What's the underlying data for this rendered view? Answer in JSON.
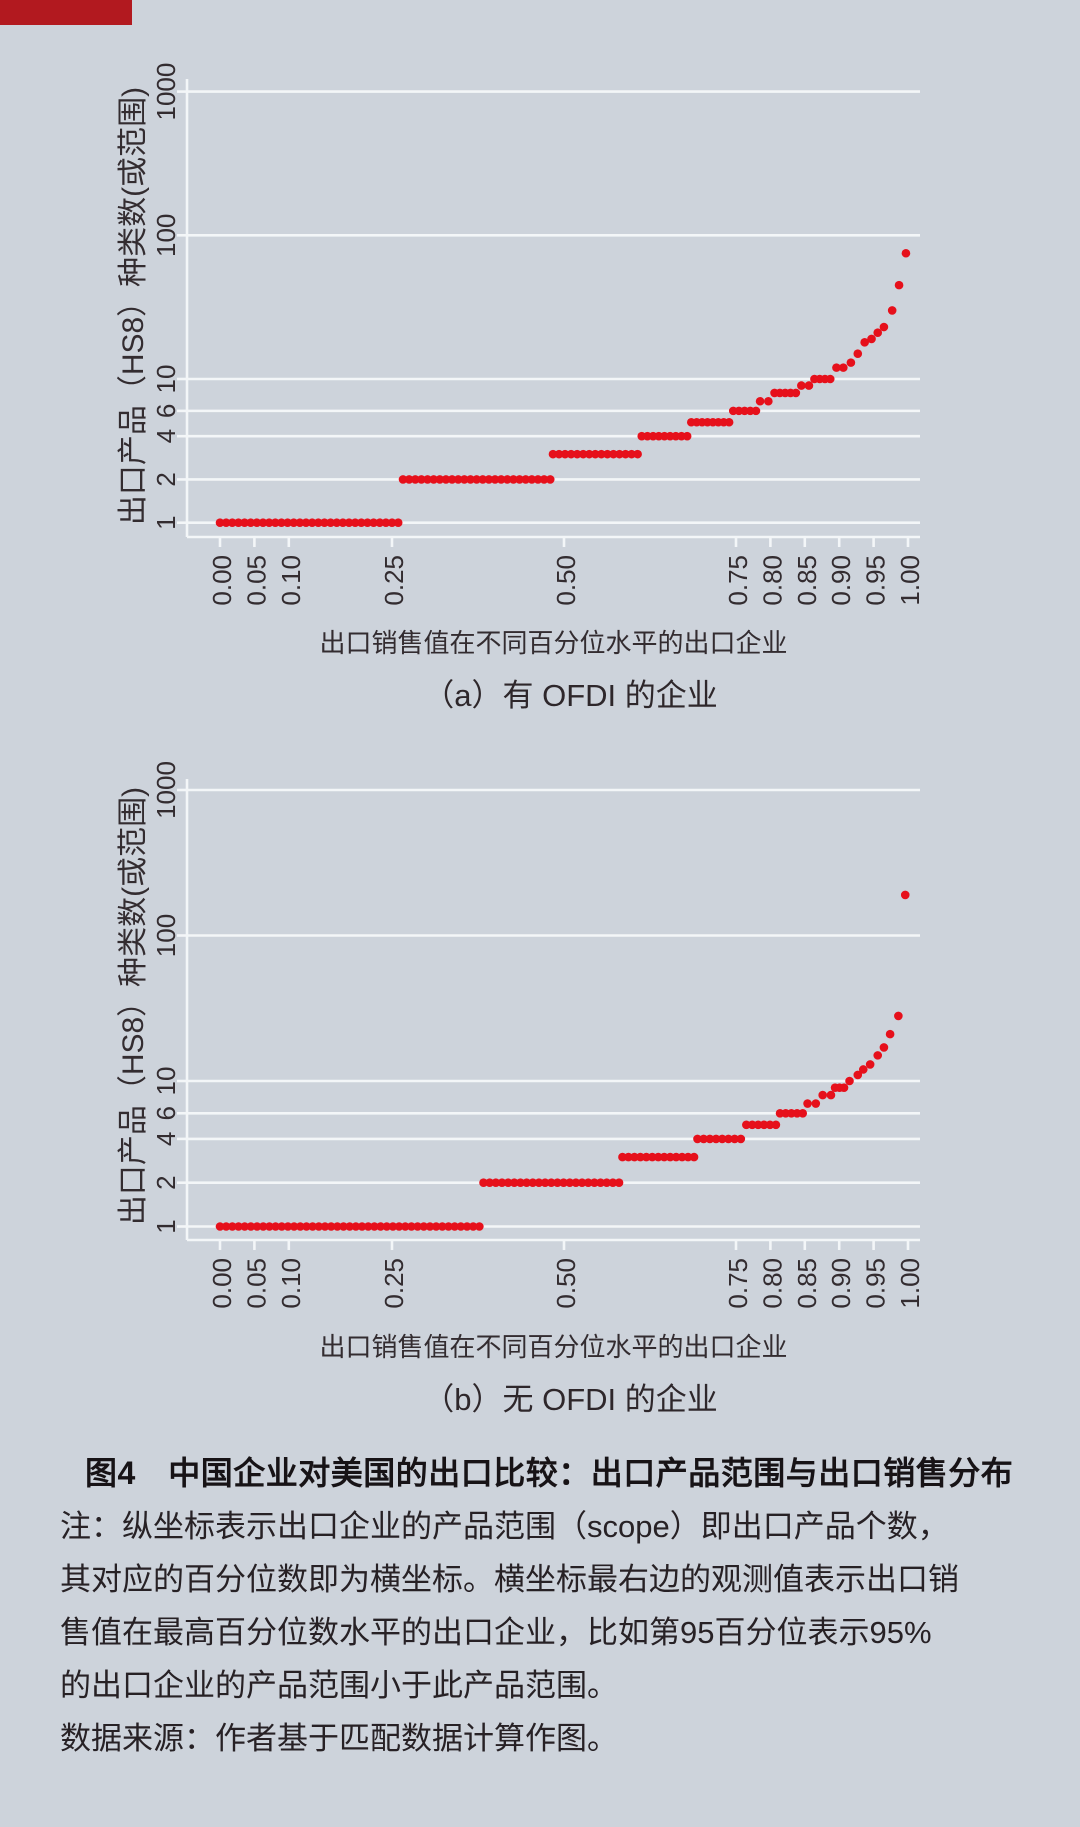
{
  "page": {
    "background": "#cdd3db",
    "top_bar_color": "#b2191f"
  },
  "caption": "图4　中国企业对美国的出口比较：出口产品范围与出口销售分布",
  "notes": {
    "lines": [
      "注：纵坐标表示出口企业的产品范围（scope）即出口产品个数，",
      "其对应的百分位数即为横坐标。横坐标最右边的观测值表示出口销",
      "售值在最高百分位数水平的出口企业，比如第95百分位表示95%",
      "的出口企业的产品范围小于此产品范围。",
      "数据来源：作者基于匹配数据计算作图。"
    ]
  },
  "chart_data": [
    {
      "id": "a",
      "type": "scatter",
      "subtitle": "（a）有 OFDI 的企业",
      "xlabel": "出口销售值在不同百分位水平的出口企业",
      "ylabel": "出口产品（HS8）种类数(或范围)",
      "dot_color": "#e6101b",
      "y_scale": "log",
      "ylim": [
        1,
        1000
      ],
      "xlim": [
        0,
        1
      ],
      "grid": true,
      "x_ticks": [
        {
          "label": "0.00",
          "value": 0.0
        },
        {
          "label": "0.05",
          "value": 0.05
        },
        {
          "label": "0.10",
          "value": 0.1
        },
        {
          "label": "0.25",
          "value": 0.25
        },
        {
          "label": "0.50",
          "value": 0.5
        },
        {
          "label": "0.75",
          "value": 0.75
        },
        {
          "label": "0.80",
          "value": 0.8
        },
        {
          "label": "0.85",
          "value": 0.85
        },
        {
          "label": "0.90",
          "value": 0.9
        },
        {
          "label": "0.95",
          "value": 0.95
        },
        {
          "label": "1.00",
          "value": 1.0
        }
      ],
      "y_ticks": [
        {
          "label": "1",
          "value": 1
        },
        {
          "label": "2",
          "value": 2
        },
        {
          "label": "4",
          "value": 4
        },
        {
          "label": "6",
          "value": 6
        },
        {
          "label": "10",
          "value": 10
        },
        {
          "label": "100",
          "value": 100
        },
        {
          "label": "1000",
          "value": 1000
        }
      ],
      "runs": [
        {
          "scope": 1,
          "from": 0.0,
          "to": 0.259,
          "n": 30
        },
        {
          "scope": 2,
          "from": 0.266,
          "to": 0.48,
          "n": 25
        },
        {
          "scope": 3,
          "from": 0.484,
          "to": 0.607,
          "n": 15
        },
        {
          "scope": 4,
          "from": 0.613,
          "to": 0.679,
          "n": 9
        },
        {
          "scope": 5,
          "from": 0.685,
          "to": 0.74,
          "n": 8
        },
        {
          "scope": 6,
          "from": 0.746,
          "to": 0.779,
          "n": 5
        },
        {
          "scope": 7,
          "from": 0.785,
          "to": 0.797,
          "n": 2
        },
        {
          "scope": 8,
          "from": 0.806,
          "to": 0.837,
          "n": 5
        },
        {
          "scope": 9,
          "from": 0.845,
          "to": 0.856,
          "n": 2
        },
        {
          "scope": 10,
          "from": 0.864,
          "to": 0.887,
          "n": 4
        },
        {
          "scope": 12,
          "from": 0.896,
          "to": 0.906,
          "n": 2
        }
      ],
      "outliers": [
        {
          "scope": 13,
          "p": 0.917
        },
        {
          "scope": 15,
          "p": 0.927
        },
        {
          "scope": 18,
          "p": 0.937
        },
        {
          "scope": 19,
          "p": 0.947
        },
        {
          "scope": 21,
          "p": 0.956
        },
        {
          "scope": 23,
          "p": 0.965
        },
        {
          "scope": 30,
          "p": 0.977
        },
        {
          "scope": 45,
          "p": 0.987
        },
        {
          "scope": 75,
          "p": 0.997
        }
      ]
    },
    {
      "id": "b",
      "type": "scatter",
      "subtitle": "（b）无 OFDI 的企业",
      "xlabel": "出口销售值在不同百分位水平的出口企业",
      "ylabel": "出口产品（HS8）种类数(或范围)",
      "dot_color": "#e6101b",
      "y_scale": "log",
      "ylim": [
        1,
        1000
      ],
      "xlim": [
        0,
        1
      ],
      "grid": true,
      "x_ticks": [
        {
          "label": "0.00",
          "value": 0.0
        },
        {
          "label": "0.05",
          "value": 0.05
        },
        {
          "label": "0.10",
          "value": 0.1
        },
        {
          "label": "0.25",
          "value": 0.25
        },
        {
          "label": "0.50",
          "value": 0.5
        },
        {
          "label": "0.75",
          "value": 0.75
        },
        {
          "label": "0.80",
          "value": 0.8
        },
        {
          "label": "0.85",
          "value": 0.85
        },
        {
          "label": "0.90",
          "value": 0.9
        },
        {
          "label": "0.95",
          "value": 0.95
        },
        {
          "label": "1.00",
          "value": 1.0
        }
      ],
      "y_ticks": [
        {
          "label": "1",
          "value": 1
        },
        {
          "label": "2",
          "value": 2
        },
        {
          "label": "4",
          "value": 4
        },
        {
          "label": "6",
          "value": 6
        },
        {
          "label": "10",
          "value": 10
        },
        {
          "label": "100",
          "value": 100
        },
        {
          "label": "1000",
          "value": 1000
        }
      ],
      "runs": [
        {
          "scope": 1,
          "from": 0.0,
          "to": 0.377,
          "n": 43
        },
        {
          "scope": 2,
          "from": 0.383,
          "to": 0.58,
          "n": 23
        },
        {
          "scope": 3,
          "from": 0.585,
          "to": 0.689,
          "n": 13
        },
        {
          "scope": 4,
          "from": 0.694,
          "to": 0.757,
          "n": 8
        },
        {
          "scope": 5,
          "from": 0.765,
          "to": 0.808,
          "n": 6
        },
        {
          "scope": 6,
          "from": 0.814,
          "to": 0.847,
          "n": 5
        },
        {
          "scope": 7,
          "from": 0.854,
          "to": 0.866,
          "n": 2
        },
        {
          "scope": 8,
          "from": 0.876,
          "to": 0.888,
          "n": 2
        },
        {
          "scope": 9,
          "from": 0.894,
          "to": 0.907,
          "n": 3
        }
      ],
      "outliers": [
        {
          "scope": 10,
          "p": 0.915
        },
        {
          "scope": 11,
          "p": 0.927
        },
        {
          "scope": 12,
          "p": 0.935
        },
        {
          "scope": 13,
          "p": 0.945
        },
        {
          "scope": 15,
          "p": 0.956
        },
        {
          "scope": 17,
          "p": 0.965
        },
        {
          "scope": 21,
          "p": 0.974
        },
        {
          "scope": 28,
          "p": 0.986
        },
        {
          "scope": 190,
          "p": 0.996
        }
      ]
    }
  ]
}
